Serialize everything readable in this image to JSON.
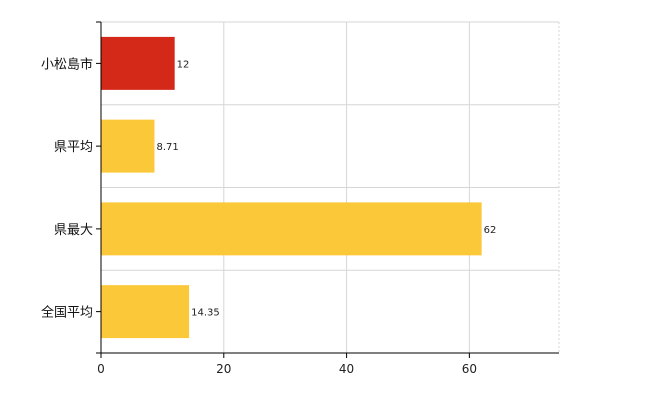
{
  "chart_data": {
    "type": "bar",
    "orientation": "horizontal",
    "categories": [
      "小松島市",
      "県平均",
      "県最大",
      "全国平均"
    ],
    "values": [
      12,
      8.71,
      62,
      14.35
    ],
    "value_labels": [
      "12",
      "8.71",
      "62",
      "14.35"
    ],
    "bar_colors": [
      "#d42818",
      "#fbc83a",
      "#fbc83a",
      "#fbc83a"
    ],
    "title": "",
    "xlabel": "",
    "ylabel": "",
    "xlim": [
      0,
      74.6
    ],
    "x_ticks": [
      0,
      20,
      40,
      60
    ],
    "x_tick_labels": [
      "0",
      "20",
      "40",
      "60"
    ],
    "grid": true,
    "legend": "none"
  }
}
